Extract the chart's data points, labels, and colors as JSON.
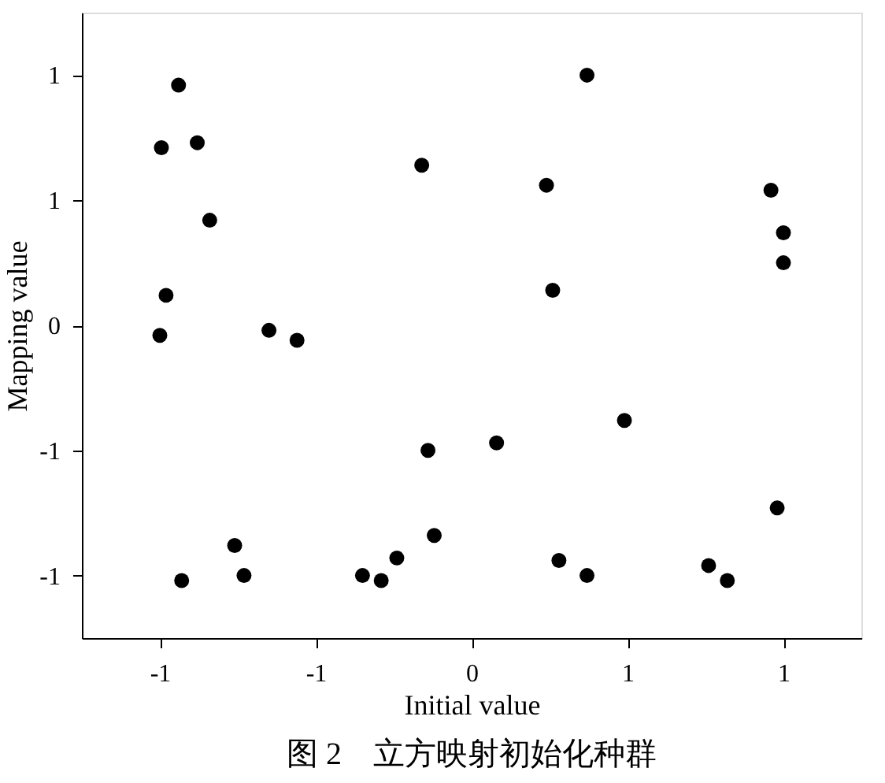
{
  "chart_data": {
    "type": "scatter",
    "title": "图 2　立方映射初始化种群",
    "xlabel": "Initial value",
    "ylabel": "Mapping value",
    "marker": "circle",
    "grid": false,
    "legend": false,
    "xlim": [
      -1.25,
      1.25
    ],
    "ylim": [
      -1.25,
      1.25
    ],
    "xticks": [
      {
        "value": -1,
        "label": "-1"
      },
      {
        "value": -0.5,
        "label": "-1"
      },
      {
        "value": 0,
        "label": "0"
      },
      {
        "value": 0.5,
        "label": "1"
      },
      {
        "value": 1,
        "label": "1"
      }
    ],
    "yticks": [
      {
        "value": -1,
        "label": "-1"
      },
      {
        "value": -0.5,
        "label": "-1"
      },
      {
        "value": 0,
        "label": "0"
      },
      {
        "value": 0.5,
        "label": "1"
      },
      {
        "value": 1,
        "label": "1"
      }
    ],
    "series": [
      {
        "color": "#000000",
        "x": [
          -0.94,
          -0.995,
          -0.88,
          -0.84,
          -0.98,
          -1.0,
          -0.65,
          -0.56,
          -0.76,
          -0.73,
          -0.93,
          -0.35,
          -0.29,
          -0.24,
          -0.12,
          -0.14,
          -0.16,
          0.08,
          0.24,
          0.26,
          0.28,
          0.37,
          0.37,
          0.49,
          0.76,
          0.82,
          0.96,
          1.0,
          1.0,
          0.98
        ],
        "values": [
          0.96,
          0.71,
          0.73,
          0.42,
          0.12,
          -0.04,
          -0.02,
          -0.06,
          -0.88,
          -1.0,
          -1.02,
          -1.0,
          -1.02,
          -0.93,
          -0.84,
          -0.5,
          0.64,
          -0.47,
          0.56,
          0.14,
          -0.94,
          -1.0,
          1.0,
          -0.38,
          -0.96,
          -1.02,
          0.54,
          0.37,
          0.25,
          -0.73
        ]
      }
    ]
  }
}
